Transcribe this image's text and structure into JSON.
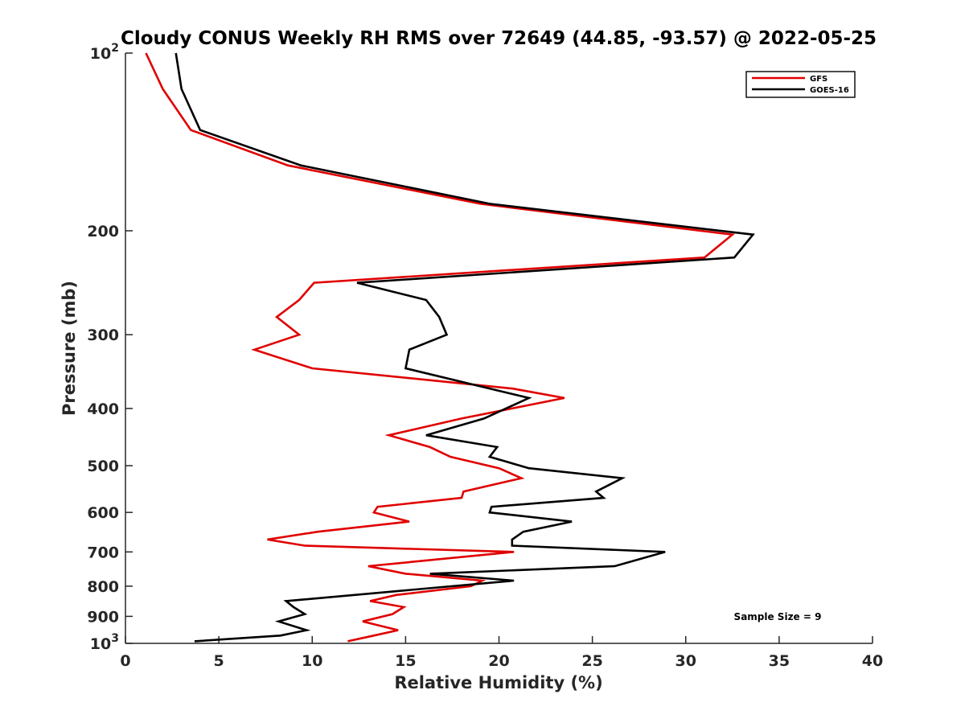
{
  "chart_data": {
    "type": "line",
    "title": "Cloudy CONUS Weekly RH RMS over 72649 (44.85, -93.57) @ 2022-05-25",
    "xlabel": "Relative Humidity (%)",
    "ylabel": "Pressure (mb)",
    "xlim": [
      0,
      40
    ],
    "ylim": [
      100,
      1000
    ],
    "y_scale": "log",
    "y_reversed": true,
    "grid": false,
    "legend_position": "top-right",
    "x_ticks": [
      0,
      5,
      10,
      15,
      20,
      25,
      30,
      35,
      40
    ],
    "y_ticks": [
      {
        "value": 100,
        "base": "10",
        "exp": "2"
      },
      {
        "value": 200,
        "label": "200"
      },
      {
        "value": 300,
        "label": "300"
      },
      {
        "value": 400,
        "label": "400"
      },
      {
        "value": 500,
        "label": "500"
      },
      {
        "value": 600,
        "label": "600"
      },
      {
        "value": 700,
        "label": "700"
      },
      {
        "value": 800,
        "label": "800"
      },
      {
        "value": 900,
        "label": "900"
      },
      {
        "value": 1000,
        "base": "10",
        "exp": "3"
      }
    ],
    "annotation": "Sample Size = 9",
    "series": [
      {
        "name": "GFS",
        "color": "#e00000",
        "points": [
          [
            1.1,
            100
          ],
          [
            2.0,
            115
          ],
          [
            3.5,
            135
          ],
          [
            8.7,
            155
          ],
          [
            19.0,
            180
          ],
          [
            32.5,
            203
          ],
          [
            31.0,
            222
          ],
          [
            10.1,
            245
          ],
          [
            9.3,
            262
          ],
          [
            8.1,
            280
          ],
          [
            9.3,
            300
          ],
          [
            6.9,
            318
          ],
          [
            10.0,
            342
          ],
          [
            20.7,
            370
          ],
          [
            23.5,
            384
          ],
          [
            18.0,
            416
          ],
          [
            14.1,
            444
          ],
          [
            16.3,
            465
          ],
          [
            17.4,
            483
          ],
          [
            20.0,
            505
          ],
          [
            21.2,
            525
          ],
          [
            18.1,
            553
          ],
          [
            18.0,
            567
          ],
          [
            13.5,
            587
          ],
          [
            13.3,
            600
          ],
          [
            15.2,
            622
          ],
          [
            10.3,
            647
          ],
          [
            7.6,
            667
          ],
          [
            9.6,
            683
          ],
          [
            20.8,
            700
          ],
          [
            13.0,
            740
          ],
          [
            15.0,
            762
          ],
          [
            19.1,
            783
          ],
          [
            18.5,
            800
          ],
          [
            14.5,
            828
          ],
          [
            13.1,
            848
          ],
          [
            14.9,
            868
          ],
          [
            14.3,
            892
          ],
          [
            12.7,
            918
          ],
          [
            14.6,
            950
          ],
          [
            13.3,
            970
          ],
          [
            11.9,
            992
          ]
        ]
      },
      {
        "name": "GOES-16",
        "color": "#000000",
        "points": [
          [
            2.7,
            100
          ],
          [
            3.0,
            115
          ],
          [
            4.0,
            135
          ],
          [
            9.4,
            155
          ],
          [
            19.5,
            180
          ],
          [
            33.6,
            203
          ],
          [
            32.6,
            222
          ],
          [
            12.4,
            245
          ],
          [
            16.1,
            262
          ],
          [
            16.8,
            280
          ],
          [
            17.2,
            300
          ],
          [
            15.2,
            318
          ],
          [
            15.0,
            342
          ],
          [
            21.6,
            384
          ],
          [
            19.2,
            416
          ],
          [
            16.1,
            444
          ],
          [
            19.9,
            465
          ],
          [
            19.5,
            483
          ],
          [
            21.6,
            505
          ],
          [
            26.6,
            525
          ],
          [
            25.2,
            553
          ],
          [
            25.6,
            567
          ],
          [
            19.6,
            587
          ],
          [
            19.5,
            600
          ],
          [
            23.9,
            622
          ],
          [
            21.3,
            647
          ],
          [
            20.7,
            667
          ],
          [
            20.7,
            683
          ],
          [
            28.9,
            700
          ],
          [
            26.2,
            740
          ],
          [
            16.3,
            762
          ],
          [
            20.8,
            783
          ],
          [
            8.6,
            848
          ],
          [
            9.0,
            868
          ],
          [
            9.6,
            892
          ],
          [
            8.2,
            918
          ],
          [
            9.7,
            950
          ],
          [
            8.3,
            970
          ],
          [
            3.7,
            992
          ]
        ]
      }
    ]
  }
}
